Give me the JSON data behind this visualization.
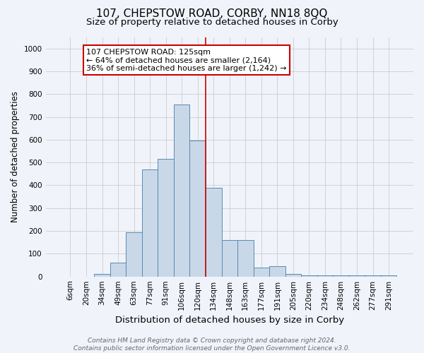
{
  "title": "107, CHEPSTOW ROAD, CORBY, NN18 8QQ",
  "subtitle": "Size of property relative to detached houses in Corby",
  "xlabel": "Distribution of detached houses by size in Corby",
  "ylabel": "Number of detached properties",
  "categories": [
    "6sqm",
    "20sqm",
    "34sqm",
    "49sqm",
    "63sqm",
    "77sqm",
    "91sqm",
    "106sqm",
    "120sqm",
    "134sqm",
    "148sqm",
    "163sqm",
    "177sqm",
    "191sqm",
    "205sqm",
    "220sqm",
    "234sqm",
    "248sqm",
    "262sqm",
    "277sqm",
    "291sqm"
  ],
  "bar_heights": [
    0,
    0,
    12,
    60,
    195,
    470,
    515,
    755,
    595,
    390,
    160,
    160,
    40,
    45,
    10,
    5,
    5,
    5,
    5,
    5,
    5
  ],
  "bar_color": "#c8d8e8",
  "bar_edge_color": "#5a8ab0",
  "ylim": [
    0,
    1050
  ],
  "yticks": [
    0,
    100,
    200,
    300,
    400,
    500,
    600,
    700,
    800,
    900,
    1000
  ],
  "vline_x": 8.5,
  "vline_color": "#cc0000",
  "annotation_box_text": "107 CHEPSTOW ROAD: 125sqm\n← 64% of detached houses are smaller (2,164)\n36% of semi-detached houses are larger (1,242) →",
  "annotation_box_color": "#ffffff",
  "annotation_box_edge_color": "#cc0000",
  "footnote": "Contains HM Land Registry data © Crown copyright and database right 2024.\nContains public sector information licensed under the Open Government Licence v3.0.",
  "title_fontsize": 11,
  "subtitle_fontsize": 9.5,
  "xlabel_fontsize": 9.5,
  "ylabel_fontsize": 8.5,
  "tick_fontsize": 7.5,
  "annotation_fontsize": 8,
  "footnote_fontsize": 6.5,
  "background_color": "#f0f4fa"
}
